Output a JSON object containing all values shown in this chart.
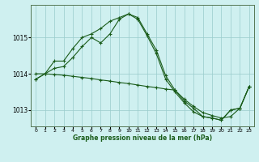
{
  "title": "Graphe pression niveau de la mer (hPa)",
  "background_color": "#cff0f0",
  "grid_color": "#99cccc",
  "line_color": "#1a5c1a",
  "hours": [
    0,
    1,
    2,
    3,
    4,
    5,
    6,
    7,
    8,
    9,
    10,
    11,
    12,
    13,
    14,
    15,
    16,
    17,
    18,
    19,
    20,
    21,
    22,
    23
  ],
  "series1": [
    1013.85,
    1014.0,
    1014.35,
    1014.35,
    1014.7,
    1015.0,
    1015.1,
    1015.25,
    1015.45,
    1015.55,
    1015.65,
    1015.55,
    1015.1,
    1014.65,
    1013.95,
    1013.55,
    1013.25,
    1013.05,
    1012.82,
    1012.78,
    1012.72,
    1013.0,
    1013.05,
    1013.65
  ],
  "series2": [
    1013.85,
    1014.0,
    1014.15,
    1014.2,
    1014.45,
    1014.75,
    1015.0,
    1014.85,
    1015.1,
    1015.5,
    1015.65,
    1015.5,
    1015.05,
    1014.55,
    1013.85,
    1013.5,
    1013.2,
    1012.95,
    1012.82,
    1012.78,
    1012.72,
    1013.0,
    1013.05,
    1013.65
  ],
  "series3": [
    1014.0,
    1014.0,
    1013.98,
    1013.96,
    1013.93,
    1013.9,
    1013.87,
    1013.83,
    1013.8,
    1013.76,
    1013.73,
    1013.69,
    1013.65,
    1013.62,
    1013.58,
    1013.55,
    1013.3,
    1013.1,
    1012.93,
    1012.85,
    1012.78,
    1012.82,
    1013.05,
    1013.65
  ],
  "ylim": [
    1012.55,
    1015.9
  ],
  "yticks": [
    1013,
    1014,
    1015
  ],
  "xlim": [
    -0.5,
    23.5
  ],
  "xticks": [
    0,
    1,
    2,
    3,
    4,
    5,
    6,
    7,
    8,
    9,
    10,
    11,
    12,
    13,
    14,
    15,
    16,
    17,
    18,
    19,
    20,
    21,
    22,
    23
  ],
  "marker": "+",
  "figsize": [
    3.2,
    2.0
  ],
  "dpi": 100
}
